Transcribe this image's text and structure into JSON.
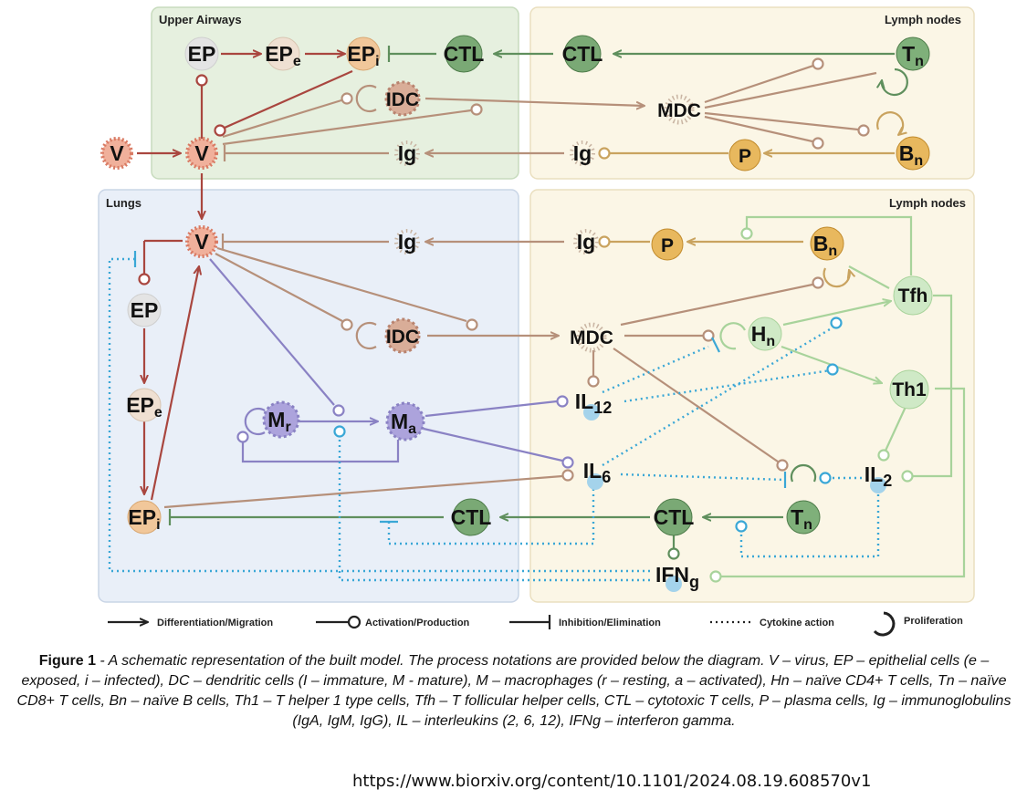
{
  "regions": {
    "upper_airways": "Upper Airways",
    "lymph_nodes_top": "Lymph nodes",
    "lungs": "Lungs",
    "lymph_nodes_bottom": "Lymph nodes"
  },
  "nodes": {
    "v_ext": {
      "base": "V",
      "sub": ""
    },
    "ua_ep": {
      "base": "EP",
      "sub": ""
    },
    "ua_epe": {
      "base": "EP",
      "sub": "e"
    },
    "ua_epi": {
      "base": "EP",
      "sub": "i"
    },
    "ua_ctl": {
      "base": "CTL",
      "sub": ""
    },
    "ln1_ctl": {
      "base": "CTL",
      "sub": ""
    },
    "ln1_tn": {
      "base": "T",
      "sub": "n"
    },
    "ua_v": {
      "base": "V",
      "sub": ""
    },
    "ua_idc": {
      "base": "IDC",
      "sub": ""
    },
    "ln1_mdc": {
      "base": "MDC",
      "sub": ""
    },
    "ln1_bn": {
      "base": "B",
      "sub": "n"
    },
    "ua_ig": {
      "base": "Ig",
      "sub": ""
    },
    "ln1_ig": {
      "base": "Ig",
      "sub": ""
    },
    "ln1_p": {
      "base": "P",
      "sub": ""
    },
    "lu_v": {
      "base": "V",
      "sub": ""
    },
    "lu_ig": {
      "base": "Ig",
      "sub": ""
    },
    "ln2_ig": {
      "base": "Ig",
      "sub": ""
    },
    "ln2_p": {
      "base": "P",
      "sub": ""
    },
    "ln2_bn": {
      "base": "B",
      "sub": "n"
    },
    "lu_ep": {
      "base": "EP",
      "sub": ""
    },
    "ln2_tfh": {
      "base": "Tfh",
      "sub": ""
    },
    "lu_idc": {
      "base": "IDC",
      "sub": ""
    },
    "ln2_mdc": {
      "base": "MDC",
      "sub": ""
    },
    "ln2_hn": {
      "base": "H",
      "sub": "n"
    },
    "lu_epe": {
      "base": "EP",
      "sub": "e"
    },
    "ln2_th1": {
      "base": "Th1",
      "sub": ""
    },
    "lu_mr": {
      "base": "M",
      "sub": "r"
    },
    "lu_ma": {
      "base": "M",
      "sub": "a"
    },
    "ln2_il12": {
      "base": "IL",
      "sub": "12"
    },
    "ln2_il6": {
      "base": "IL",
      "sub": "6"
    },
    "ln2_il2": {
      "base": "IL",
      "sub": "2"
    },
    "lu_epi": {
      "base": "EP",
      "sub": "i"
    },
    "lu_ctl": {
      "base": "CTL",
      "sub": ""
    },
    "ln2_ctl": {
      "base": "CTL",
      "sub": ""
    },
    "ln2_tn": {
      "base": "T",
      "sub": "n"
    },
    "ln2_ifng": {
      "base": "IFN",
      "sub": "g"
    }
  },
  "legend": {
    "differentiation": "Differentiation/Migration",
    "activation": "Activation/Production",
    "inhibition": "Inhibition/Elimination",
    "cytokine": "Cytokine action",
    "proliferation": "Proliferation"
  },
  "caption": {
    "label": "Figure 1",
    "text": " - A schematic representation of the built model. The process notations are provided below the diagram. V – virus, EP – epithelial cells (e – exposed, i – infected), DC – dendritic cells (I – immature, M - mature), M – macrophages (r – resting, a – activated), Hn – naïve CD4+ T cells, Tn – naïve CD8+ T cells, Bn – naïve B cells, Th1 – T helper 1 type cells, Tfh – T follicular helper cells, CTL – cytotoxic T cells, P – plasma cells, Ig – immunoglobulins (IgA, IgM, IgG), IL – interleukins (2, 6, 12), IFNg – interferon gamma."
  },
  "source_url": "https://www.biorxiv.org/content/10.1101/2024.08.19.608570v1",
  "colors": {
    "red": "#a9463f",
    "brown": "#b6907a",
    "green": "#5f8f5d",
    "lightgreen": "#a8d39b",
    "purple": "#8a82c4",
    "blue": "#3aa7d6",
    "gold": "#c9a35f"
  }
}
